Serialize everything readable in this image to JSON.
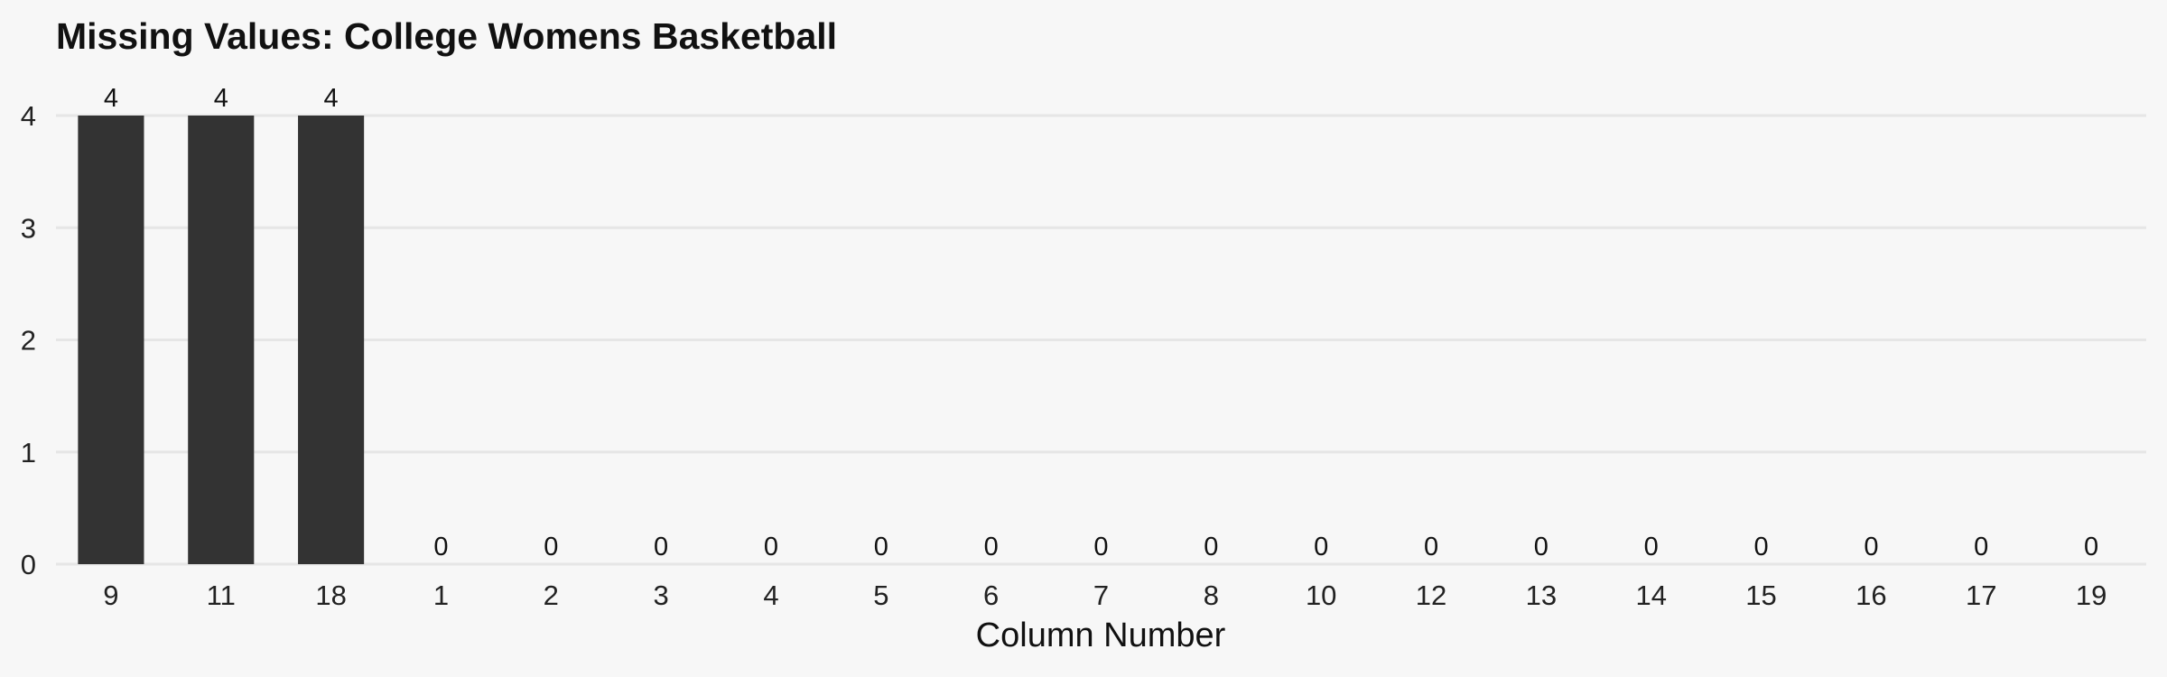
{
  "chart_data": {
    "type": "bar",
    "title": "Missing Values: College Womens Basketball",
    "xlabel": "Column Number",
    "ylabel": "",
    "categories": [
      "9",
      "11",
      "18",
      "1",
      "2",
      "3",
      "4",
      "5",
      "6",
      "7",
      "8",
      "10",
      "12",
      "13",
      "14",
      "15",
      "16",
      "17",
      "19"
    ],
    "values": [
      4,
      4,
      4,
      0,
      0,
      0,
      0,
      0,
      0,
      0,
      0,
      0,
      0,
      0,
      0,
      0,
      0,
      0,
      0
    ],
    "ylim": [
      0,
      4
    ],
    "yticks": [
      0,
      1,
      2,
      3,
      4
    ],
    "grid": true,
    "legend": "none",
    "bar_color": "#333333",
    "background_color": "#f7f7f7"
  }
}
